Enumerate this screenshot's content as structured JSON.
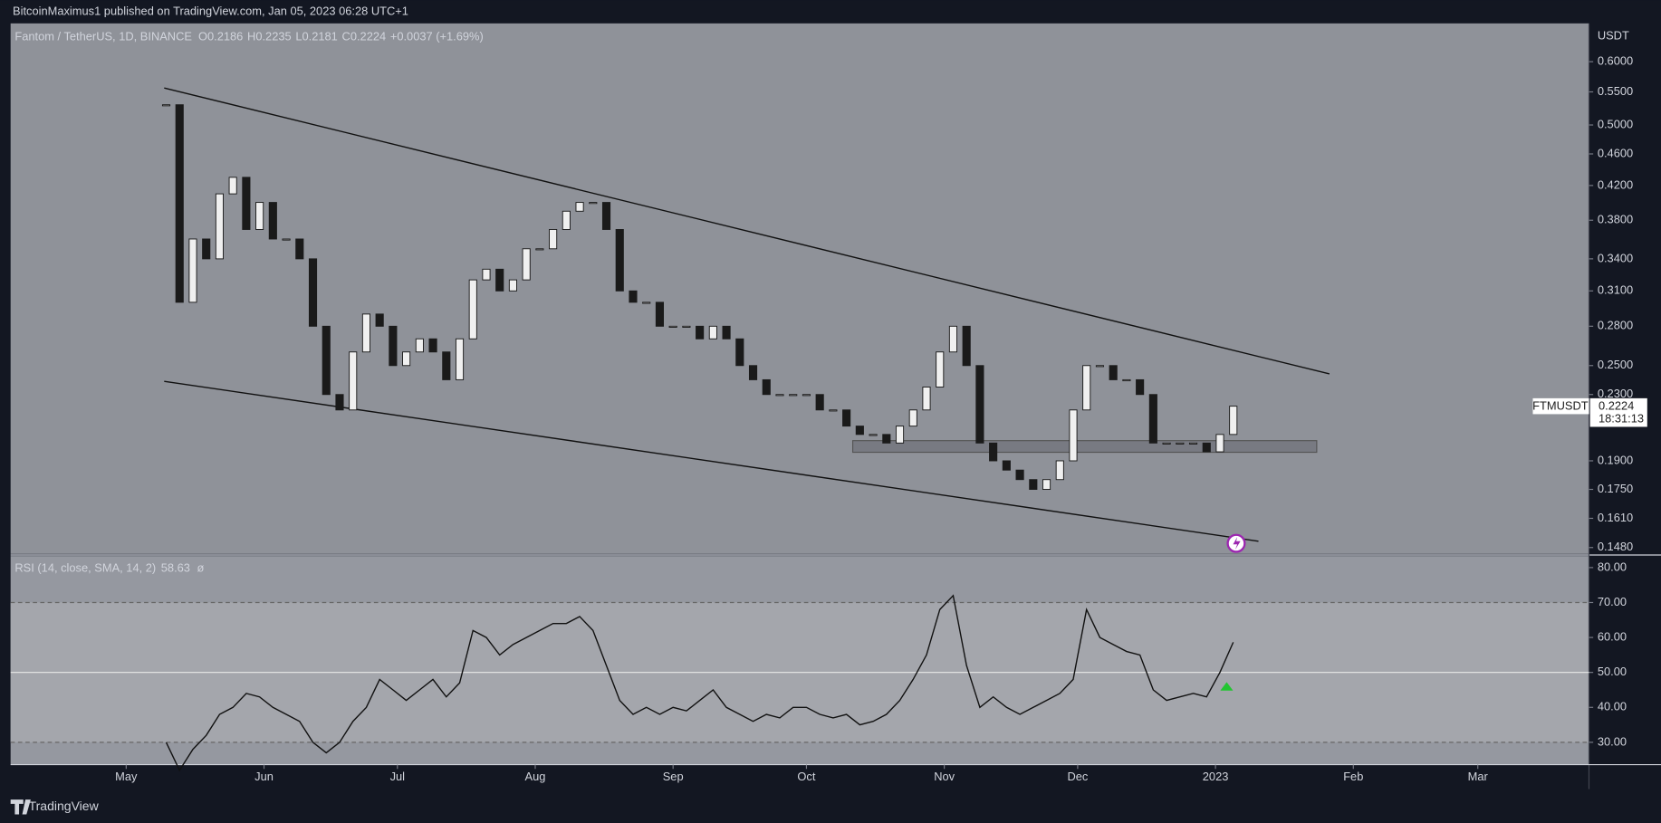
{
  "chart_data": [
    {
      "type": "candlestick",
      "header": "BitcoinMaximus1 published on TradingView.com, Jan 05, 2023 06:28 UTC+1",
      "symbol": "Fantom / TetherUS, 1D, BINANCE",
      "ohlc_legend": [
        "O",
        "0.2186",
        "H",
        "0.2235",
        "L",
        "0.2181",
        "C",
        "0.2224",
        "+0.0037 (+1.69%)"
      ],
      "currency": "USDT",
      "ticker": "FTMUSDT",
      "last_price_label": "0.2224",
      "countdown": "18:31:13",
      "log_scale": true,
      "up_color": "#f0f0f0",
      "down_color": "#1a1a1a",
      "x": [
        "2022-05-10",
        "2022-05-13",
        "2022-05-16",
        "2022-05-19",
        "2022-05-22",
        "2022-05-25",
        "2022-05-28",
        "2022-05-31",
        "2022-06-03",
        "2022-06-06",
        "2022-06-09",
        "2022-06-12",
        "2022-06-15",
        "2022-06-18",
        "2022-06-21",
        "2022-06-24",
        "2022-06-27",
        "2022-06-30",
        "2022-07-03",
        "2022-07-06",
        "2022-07-09",
        "2022-07-12",
        "2022-07-15",
        "2022-07-18",
        "2022-07-21",
        "2022-07-24",
        "2022-07-27",
        "2022-07-30",
        "2022-08-02",
        "2022-08-05",
        "2022-08-08",
        "2022-08-11",
        "2022-08-14",
        "2022-08-17",
        "2022-08-20",
        "2022-08-23",
        "2022-08-26",
        "2022-08-29",
        "2022-09-01",
        "2022-09-04",
        "2022-09-07",
        "2022-09-10",
        "2022-09-13",
        "2022-09-16",
        "2022-09-19",
        "2022-09-22",
        "2022-09-25",
        "2022-09-28",
        "2022-10-01",
        "2022-10-04",
        "2022-10-07",
        "2022-10-10",
        "2022-10-13",
        "2022-10-16",
        "2022-10-19",
        "2022-10-22",
        "2022-10-25",
        "2022-10-28",
        "2022-10-31",
        "2022-11-03",
        "2022-11-06",
        "2022-11-09",
        "2022-11-12",
        "2022-11-15",
        "2022-11-18",
        "2022-11-21",
        "2022-11-24",
        "2022-11-27",
        "2022-11-30",
        "2022-12-03",
        "2022-12-06",
        "2022-12-09",
        "2022-12-12",
        "2022-12-15",
        "2022-12-18",
        "2022-12-21",
        "2022-12-24",
        "2022-12-27",
        "2022-12-30",
        "2023-01-02",
        "2023-01-05"
      ],
      "values": [
        0.53,
        0.3,
        0.36,
        0.34,
        0.41,
        0.43,
        0.37,
        0.4,
        0.36,
        0.36,
        0.34,
        0.28,
        0.23,
        0.22,
        0.26,
        0.29,
        0.28,
        0.25,
        0.26,
        0.27,
        0.26,
        0.24,
        0.27,
        0.32,
        0.33,
        0.31,
        0.32,
        0.35,
        0.35,
        0.37,
        0.39,
        0.4,
        0.4,
        0.37,
        0.31,
        0.3,
        0.3,
        0.28,
        0.28,
        0.28,
        0.27,
        0.28,
        0.27,
        0.25,
        0.24,
        0.23,
        0.23,
        0.23,
        0.23,
        0.22,
        0.22,
        0.21,
        0.205,
        0.205,
        0.2,
        0.21,
        0.22,
        0.235,
        0.26,
        0.28,
        0.25,
        0.2,
        0.19,
        0.185,
        0.18,
        0.175,
        0.18,
        0.19,
        0.22,
        0.25,
        0.25,
        0.24,
        0.24,
        0.23,
        0.2,
        0.2,
        0.2,
        0.2,
        0.195,
        0.205,
        0.2224
      ],
      "xlim": [
        "2022-04-05",
        "2023-03-26"
      ],
      "xticks": [
        {
          "value": "2022-05-01",
          "label": "May"
        },
        {
          "value": "2022-06-01",
          "label": "Jun"
        },
        {
          "value": "2022-07-01",
          "label": "Jul"
        },
        {
          "value": "2022-08-01",
          "label": "Aug"
        },
        {
          "value": "2022-09-01",
          "label": "Sep"
        },
        {
          "value": "2022-10-01",
          "label": "Oct"
        },
        {
          "value": "2022-11-01",
          "label": "Nov"
        },
        {
          "value": "2022-12-01",
          "label": "Dec"
        },
        {
          "value": "2023-01-01",
          "label": "2023"
        },
        {
          "value": "2023-02-01",
          "label": "Feb"
        },
        {
          "value": "2023-03-01",
          "label": "Mar"
        }
      ],
      "ylim": [
        0.1453,
        0.67
      ],
      "yticks": [
        {
          "value": 0.6,
          "label": "0.6000"
        },
        {
          "value": 0.55,
          "label": "0.5500"
        },
        {
          "value": 0.5,
          "label": "0.5000"
        },
        {
          "value": 0.46,
          "label": "0.4600"
        },
        {
          "value": 0.42,
          "label": "0.4200"
        },
        {
          "value": 0.38,
          "label": "0.3800"
        },
        {
          "value": 0.34,
          "label": "0.3400"
        },
        {
          "value": 0.31,
          "label": "0.3100"
        },
        {
          "value": 0.28,
          "label": "0.2800"
        },
        {
          "value": 0.25,
          "label": "0.2500"
        },
        {
          "value": 0.23,
          "label": "0.2300"
        },
        {
          "value": 0.19,
          "label": "0.1900"
        },
        {
          "value": 0.175,
          "label": "0.1750"
        },
        {
          "value": 0.161,
          "label": "0.1610"
        },
        {
          "value": 0.148,
          "label": "0.1480"
        }
      ]
    },
    {
      "type": "line",
      "title": "RSI (14, close, SMA, 14, 2)",
      "last_value": 58.63,
      "symbol_mark": "ø",
      "series": [
        {
          "name": "RSI",
          "color": "#111111",
          "values": [
            30,
            22,
            28,
            32,
            38,
            40,
            44,
            43,
            40,
            38,
            36,
            30,
            27,
            30,
            36,
            40,
            48,
            45,
            42,
            45,
            48,
            43,
            47,
            62,
            60,
            55,
            58,
            60,
            62,
            64,
            64,
            66,
            62,
            52,
            42,
            38,
            40,
            38,
            40,
            39,
            42,
            45,
            40,
            38,
            36,
            38,
            37,
            40,
            40,
            38,
            37,
            38,
            35,
            36,
            38,
            42,
            48,
            55,
            68,
            72,
            52,
            40,
            43,
            40,
            38,
            40,
            42,
            44,
            48,
            68,
            60,
            58,
            56,
            55,
            45,
            42,
            43,
            44,
            43,
            50,
            58.63
          ]
        }
      ],
      "ylim": [
        23.6,
        83.6
      ],
      "yticks": [
        {
          "value": 80,
          "label": "80.00"
        },
        {
          "value": 70,
          "label": "70.00"
        },
        {
          "value": 60,
          "label": "60.00"
        },
        {
          "value": 50,
          "label": "50.00"
        },
        {
          "value": 40,
          "label": "40.00"
        },
        {
          "value": 30,
          "label": "30.00"
        }
      ]
    },
    {
      "type": "footer",
      "brand": "TradingView"
    }
  ]
}
